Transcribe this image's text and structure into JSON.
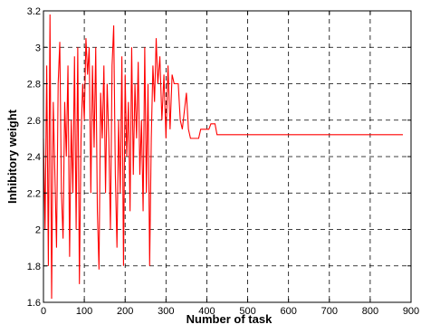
{
  "chart_data": {
    "type": "line",
    "title": "",
    "xlabel": "Number of task",
    "ylabel": "Inhibitory weight",
    "xlim": [
      0,
      900
    ],
    "ylim": [
      1.6,
      3.2
    ],
    "xticks": [
      0,
      100,
      200,
      300,
      400,
      500,
      600,
      700,
      800,
      900
    ],
    "yticks": [
      1.6,
      1.8,
      2.0,
      2.2,
      2.4,
      2.6,
      2.8,
      3.0,
      3.2
    ],
    "xtick_labels": [
      "0",
      "100",
      "200",
      "300",
      "400",
      "500",
      "600",
      "700",
      "800",
      "900"
    ],
    "ytick_labels": [
      "1.6",
      "1.8",
      "2",
      "2.2",
      "2.4",
      "2.6",
      "2.8",
      "3",
      "3.2"
    ],
    "grid": true,
    "line_color": "#ff0000",
    "series": [
      {
        "points": [
          [
            0,
            2.5
          ],
          [
            4,
            2.0
          ],
          [
            8,
            2.9
          ],
          [
            12,
            1.8
          ],
          [
            16,
            3.18
          ],
          [
            20,
            1.62
          ],
          [
            24,
            2.7
          ],
          [
            28,
            2.3
          ],
          [
            32,
            1.9
          ],
          [
            36,
            2.8
          ],
          [
            40,
            3.03
          ],
          [
            44,
            2.2
          ],
          [
            48,
            1.95
          ],
          [
            52,
            2.7
          ],
          [
            56,
            2.4
          ],
          [
            60,
            2.9
          ],
          [
            64,
            1.85
          ],
          [
            68,
            2.6
          ],
          [
            72,
            2.2
          ],
          [
            76,
            2.95
          ],
          [
            80,
            2.0
          ],
          [
            84,
            3.0
          ],
          [
            88,
            1.7
          ],
          [
            92,
            2.5
          ],
          [
            96,
            2.8
          ],
          [
            100,
            2.6
          ],
          [
            104,
            3.05
          ],
          [
            108,
            2.85
          ],
          [
            112,
            3.0
          ],
          [
            116,
            2.2
          ],
          [
            120,
            2.9
          ],
          [
            124,
            2.45
          ],
          [
            128,
            3.0
          ],
          [
            132,
            2.1
          ],
          [
            136,
            1.78
          ],
          [
            140,
            2.75
          ],
          [
            144,
            2.5
          ],
          [
            148,
            2.9
          ],
          [
            152,
            2.2
          ],
          [
            156,
            2.8
          ],
          [
            160,
            2.5
          ],
          [
            164,
            2.0
          ],
          [
            168,
            2.9
          ],
          [
            172,
            3.12
          ],
          [
            176,
            2.3
          ],
          [
            180,
            1.9
          ],
          [
            184,
            2.6
          ],
          [
            188,
            2.2
          ],
          [
            192,
            2.95
          ],
          [
            196,
            1.8
          ],
          [
            200,
            2.85
          ],
          [
            204,
            2.4
          ],
          [
            208,
            2.7
          ],
          [
            212,
            2.1
          ],
          [
            216,
            3.0
          ],
          [
            220,
            2.3
          ],
          [
            224,
            2.8
          ],
          [
            228,
            2.5
          ],
          [
            232,
            2.92
          ],
          [
            236,
            2.3
          ],
          [
            240,
            2.6
          ],
          [
            244,
            2.1
          ],
          [
            248,
            3.0
          ],
          [
            252,
            2.2
          ],
          [
            256,
            2.8
          ],
          [
            260,
            1.8
          ],
          [
            264,
            2.5
          ],
          [
            268,
            2.9
          ],
          [
            272,
            2.7
          ],
          [
            276,
            3.05
          ],
          [
            280,
            2.8
          ],
          [
            285,
            2.95
          ],
          [
            290,
            2.6
          ],
          [
            295,
            2.85
          ],
          [
            300,
            2.5
          ],
          [
            305,
            2.9
          ],
          [
            310,
            2.55
          ],
          [
            315,
            2.85
          ],
          [
            320,
            2.8
          ],
          [
            330,
            2.8
          ],
          [
            335,
            2.6
          ],
          [
            340,
            2.55
          ],
          [
            345,
            2.65
          ],
          [
            350,
            2.75
          ],
          [
            355,
            2.55
          ],
          [
            360,
            2.5
          ],
          [
            380,
            2.5
          ],
          [
            385,
            2.55
          ],
          [
            405,
            2.55
          ],
          [
            410,
            2.58
          ],
          [
            420,
            2.58
          ],
          [
            425,
            2.52
          ],
          [
            880,
            2.52
          ]
        ]
      }
    ]
  }
}
